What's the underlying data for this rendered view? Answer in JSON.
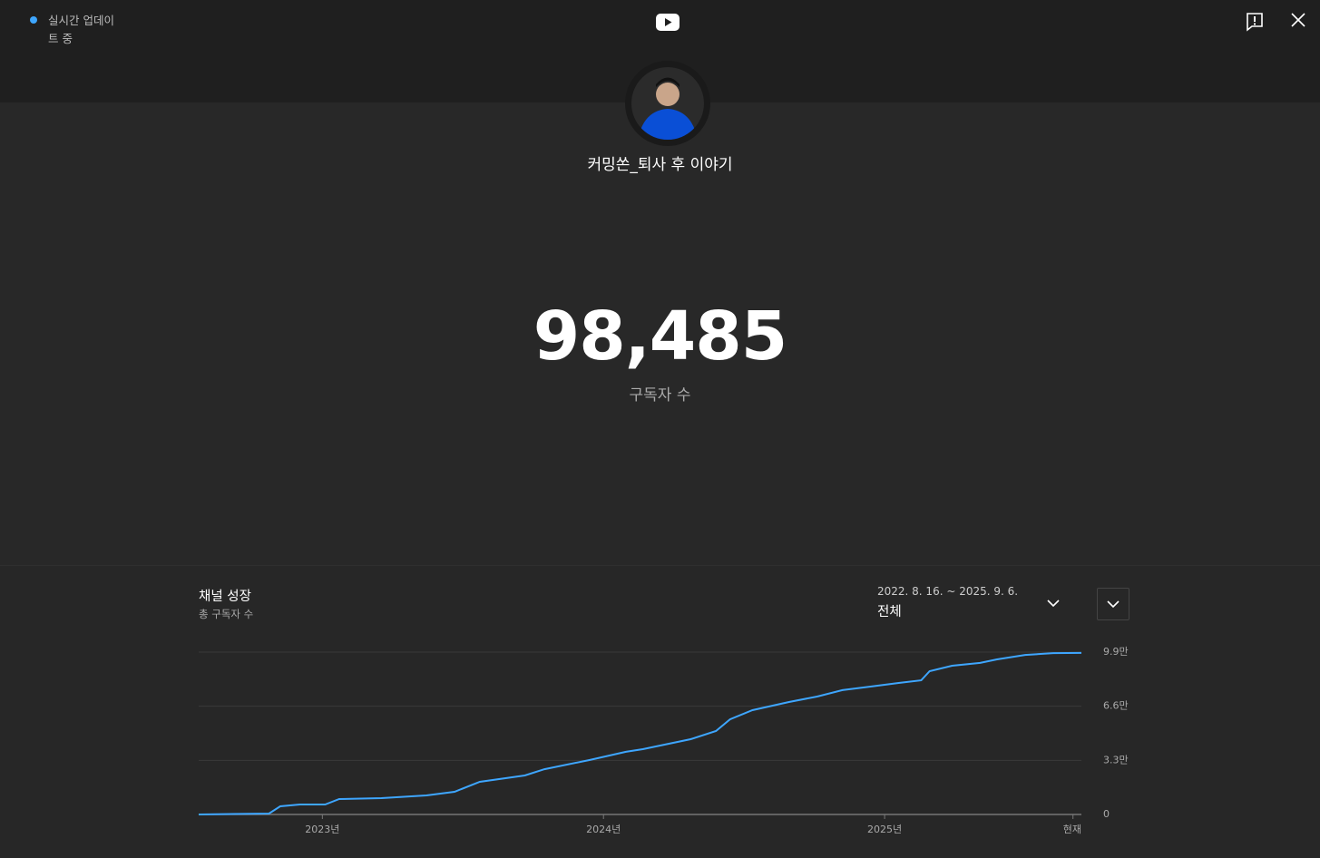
{
  "header": {
    "status": "실시간 업데이트 중"
  },
  "channel": {
    "name": "커밍쏜_퇴사 후 이야기"
  },
  "counter": {
    "value": "98,485",
    "label": "구독자 수"
  },
  "chart_data": {
    "type": "line",
    "title": "채널 성장",
    "subtitle": "총 구독자 수",
    "date_range": "2022. 8. 16. ~ 2025. 9. 6.",
    "period": "전체",
    "x": [
      2022.56,
      2022.81,
      2022.85,
      2022.92,
      2023.01,
      2023.06,
      2023.21,
      2023.37,
      2023.47,
      2023.56,
      2023.72,
      2023.79,
      2023.95,
      2024.08,
      2024.14,
      2024.31,
      2024.4,
      2024.45,
      2024.53,
      2024.66,
      2024.76,
      2024.85,
      2024.95,
      2025.05,
      2025.13,
      2025.16,
      2025.24,
      2025.34,
      2025.4,
      2025.5,
      2025.6,
      2025.7
    ],
    "values": [
      0,
      550,
      5000,
      6100,
      6100,
      9400,
      9950,
      11600,
      13800,
      19900,
      23800,
      27600,
      33200,
      38200,
      39800,
      45900,
      50900,
      58000,
      63600,
      68600,
      71900,
      75800,
      78000,
      80200,
      81800,
      87400,
      90700,
      92400,
      94600,
      97300,
      98400,
      98485
    ],
    "color": "#3ea6ff",
    "xlim": [
      2022.56,
      2025.7
    ],
    "xticks": [
      {
        "value": 2023,
        "label": "2023년"
      },
      {
        "value": 2024,
        "label": "2024년"
      },
      {
        "value": 2025,
        "label": "2025년"
      },
      {
        "value": 2025.67,
        "label": "현재"
      }
    ],
    "ylim": [
      0,
      99000
    ],
    "yticks": [
      0,
      {
        "value": 33000,
        "label": "3.3만"
      },
      {
        "value": 66000,
        "label": "6.6만"
      },
      {
        "value": 99000,
        "label": "9.9만"
      }
    ],
    "grid": true
  }
}
